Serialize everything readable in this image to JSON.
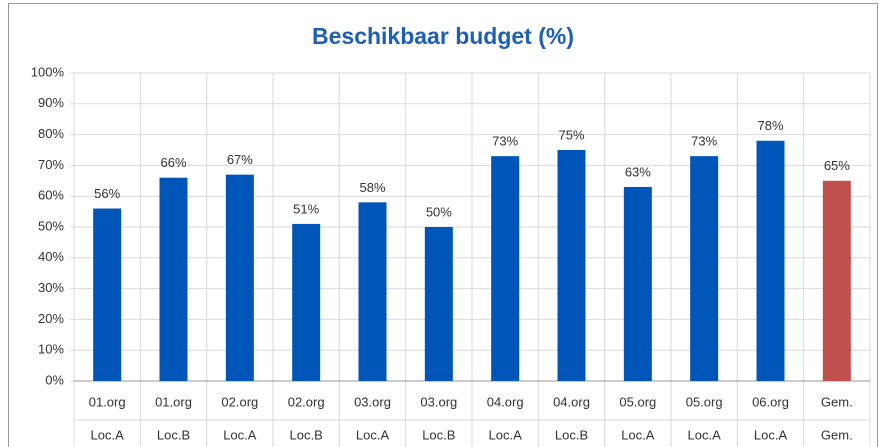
{
  "chart_data": {
    "type": "bar",
    "title": "Beschikbaar budget (%)",
    "categories": [
      [
        "01.org",
        "Loc.A"
      ],
      [
        "01.org",
        "Loc.B"
      ],
      [
        "02.org",
        "Loc.A"
      ],
      [
        "02.org",
        "Loc.B"
      ],
      [
        "03.org",
        "Loc.A"
      ],
      [
        "03.org",
        "Loc.B"
      ],
      [
        "04.org",
        "Loc.A"
      ],
      [
        "04.org",
        "Loc.B"
      ],
      [
        "05.org",
        "Loc.A"
      ],
      [
        "05.org",
        "Loc.A"
      ],
      [
        "06.org",
        "Loc.A"
      ],
      [
        "Gem.",
        "Gem."
      ]
    ],
    "values": [
      56,
      66,
      67,
      51,
      58,
      50,
      73,
      75,
      63,
      73,
      78,
      65
    ],
    "value_labels": [
      "56%",
      "66%",
      "67%",
      "51%",
      "58%",
      "50%",
      "73%",
      "75%",
      "63%",
      "73%",
      "78%",
      "65%"
    ],
    "colors": [
      "#0055b8",
      "#0055b8",
      "#0055b8",
      "#0055b8",
      "#0055b8",
      "#0055b8",
      "#0055b8",
      "#0055b8",
      "#0055b8",
      "#0055b8",
      "#0055b8",
      "#c0504d"
    ],
    "ylim": [
      0,
      100
    ],
    "yticks": [
      {
        "value": 0,
        "label": "0%"
      },
      {
        "value": 10,
        "label": "10%"
      },
      {
        "value": 20,
        "label": "20%"
      },
      {
        "value": 30,
        "label": "30%"
      },
      {
        "value": 40,
        "label": "40%"
      },
      {
        "value": 50,
        "label": "50%"
      },
      {
        "value": 60,
        "label": "60%"
      },
      {
        "value": 70,
        "label": "70%"
      },
      {
        "value": 80,
        "label": "80%"
      },
      {
        "value": 90,
        "label": "90%"
      },
      {
        "value": 100,
        "label": "100%"
      }
    ],
    "grid": true
  }
}
